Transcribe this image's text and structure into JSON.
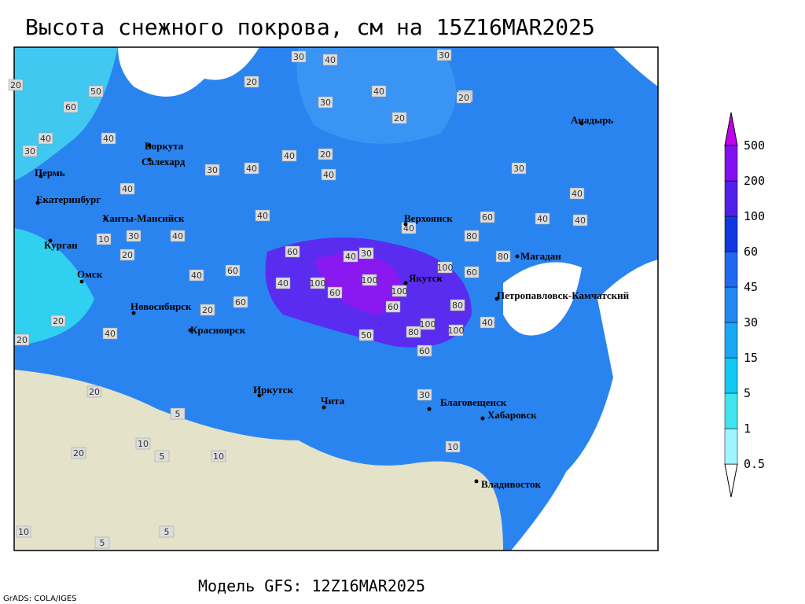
{
  "title": "Высота снежного покрова, см на 15Z16MAR2025",
  "footer": {
    "model": "Модель GFS: 12Z16MAR2025",
    "credit": "GrADS: COLA/IGES"
  },
  "legend": {
    "levels": [
      0.5,
      1,
      5,
      15,
      30,
      45,
      60,
      100,
      200,
      500
    ],
    "colors": [
      "#ffffff",
      "#a0f4ff",
      "#40e4f0",
      "#10c8f0",
      "#18a8f4",
      "#2088f0",
      "#2068f0",
      "#1038e0",
      "#5020e8",
      "#8010f0",
      "#c000f0"
    ]
  },
  "cities": [
    "Воркута",
    "Салехард",
    "Пермь",
    "Екатеринбург",
    "Ханты-Мансийск",
    "Курган",
    "Омск",
    "Новосибирск",
    "Красноярск",
    "Иркутск",
    "Чита",
    "Благовещенск",
    "Хабаровск",
    "Владивосток",
    "Якутск",
    "Верхоянск",
    "Магадан",
    "Петропавловск-Камчатский",
    "Анадырь"
  ],
  "contour_labels": [
    30,
    40,
    20,
    30,
    20,
    40,
    50,
    30,
    20,
    30,
    40,
    40,
    60,
    40,
    40,
    20,
    30,
    40,
    40,
    30,
    40,
    40,
    40,
    60,
    60,
    40,
    100,
    60,
    60,
    100,
    80,
    100,
    100,
    100,
    80,
    60,
    80,
    60,
    40,
    20,
    40,
    30,
    40,
    20,
    10,
    20,
    30,
    20,
    40,
    60,
    50,
    40,
    20,
    10,
    5,
    20,
    5,
    10,
    5,
    20,
    10,
    5,
    60,
    40,
    100,
    80,
    40,
    20,
    30,
    10
  ]
}
